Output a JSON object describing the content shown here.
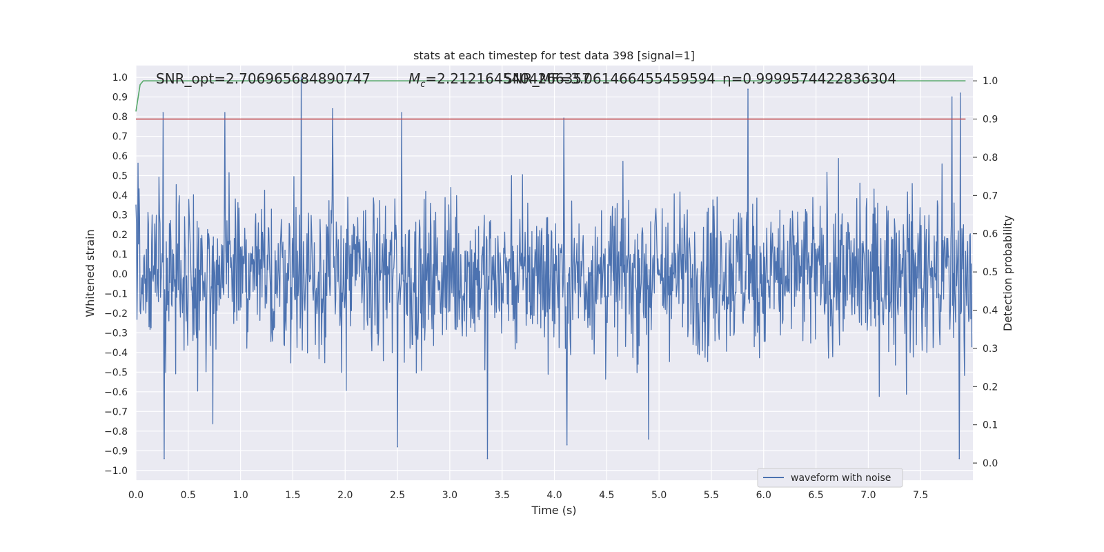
{
  "chart_data": {
    "type": "line",
    "title": "stats at each timestep for test data 398 [signal=1]",
    "xlabel": "Time (s)",
    "ylabel": "Whitened strain",
    "y2label": "Detection probability",
    "xlim": [
      0.0,
      8.0
    ],
    "ylim": [
      -1.05,
      1.06
    ],
    "y2lim": [
      -0.045,
      1.04
    ],
    "xticks": [
      "0.0",
      "0.5",
      "1.0",
      "1.5",
      "2.0",
      "2.5",
      "3.0",
      "3.5",
      "4.0",
      "4.5",
      "5.0",
      "5.5",
      "6.0",
      "6.5",
      "7.0",
      "7.5"
    ],
    "yticks": [
      "1.0",
      "0.9",
      "0.8",
      "0.7",
      "0.6",
      "0.5",
      "0.4",
      "0.3",
      "0.2",
      "0.1",
      "0.0",
      "−0.1",
      "−0.2",
      "−0.3",
      "−0.4",
      "−0.5",
      "−0.6",
      "−0.7",
      "−0.8",
      "−0.9",
      "−1.0"
    ],
    "y2ticks": [
      "1.0",
      "0.9",
      "0.8",
      "0.7",
      "0.6",
      "0.5",
      "0.4",
      "0.3",
      "0.2",
      "0.1",
      "0.0"
    ],
    "grid": true,
    "legend": {
      "placement": "bottom-right",
      "entries": [
        {
          "label": "waveform with noise",
          "color": "#4c72b0"
        }
      ]
    },
    "annotations": {
      "snr_opt": "SNR_opt=2.706965684890747",
      "mc_prefix": "M",
      "mc_sub": "c",
      "mc_value": "=2.2121645404266357",
      "snr_mf": "SNR_MF=3.061466455459594",
      "eta": "η=0.9999574422836304"
    },
    "series": [
      {
        "name": "waveform with noise",
        "color": "#4c72b0",
        "sampling": "dense noise, sample spacing 0.005 s",
        "x_step": 0.005,
        "envelope_typical": [
          -0.5,
          0.5
        ],
        "peaks": [
          {
            "x": 0.26,
            "y": 0.82
          },
          {
            "x": 0.85,
            "y": 0.82
          },
          {
            "x": 1.58,
            "y": 1.0
          },
          {
            "x": 1.88,
            "y": 0.84
          },
          {
            "x": 2.54,
            "y": 0.82
          },
          {
            "x": 5.85,
            "y": 0.94
          },
          {
            "x": 7.8,
            "y": 0.9
          },
          {
            "x": 7.88,
            "y": 0.92
          }
        ],
        "troughs": [
          {
            "x": 0.27,
            "y": -0.94
          },
          {
            "x": 2.5,
            "y": -0.88
          },
          {
            "x": 3.36,
            "y": -0.94
          },
          {
            "x": 4.12,
            "y": -0.87
          },
          {
            "x": 4.9,
            "y": -0.84
          },
          {
            "x": 7.87,
            "y": -0.94
          }
        ]
      },
      {
        "color": "#55a868",
        "axis": "right",
        "x": [
          0.0,
          0.04,
          0.07,
          0.1,
          7.93
        ],
        "y": [
          0.92,
          0.99,
          1.0,
          1.0,
          1.0
        ]
      },
      {
        "color": "#c44e52",
        "axis": "right",
        "x": [
          0.0,
          7.93
        ],
        "y": [
          0.9,
          0.9
        ]
      }
    ]
  }
}
